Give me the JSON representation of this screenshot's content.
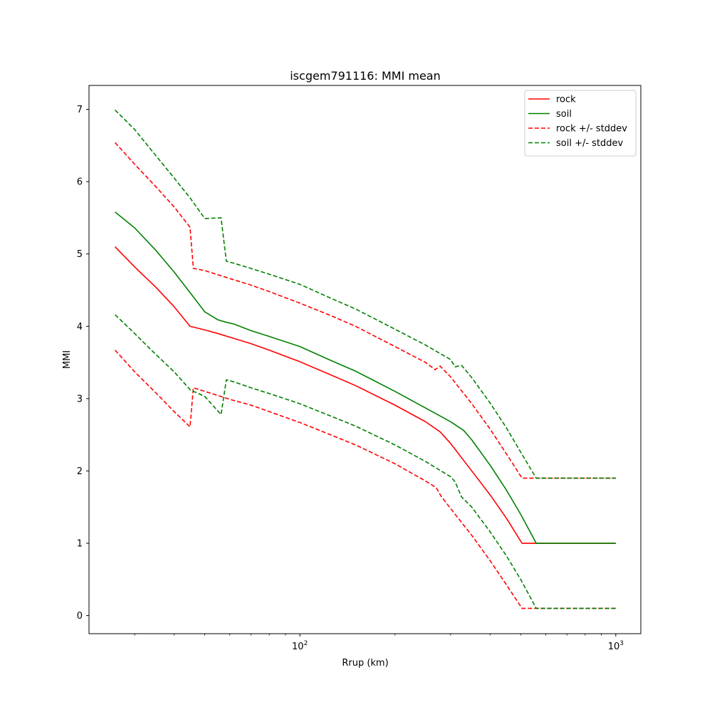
{
  "chart_data": {
    "type": "line",
    "title": "iscgem791116: MMI mean",
    "xlabel": "Rrup (km)",
    "ylabel": "MMI",
    "xscale": "log",
    "xlim": [
      21.5,
      1200
    ],
    "ylim": [
      -0.25,
      7.33
    ],
    "x_major_ticks": [
      {
        "value": 100,
        "base": "10",
        "exp": "2"
      },
      {
        "value": 1000,
        "base": "10",
        "exp": "3"
      }
    ],
    "x_minor_ticks": [
      30,
      40,
      50,
      60,
      70,
      80,
      90,
      200,
      300,
      400,
      500,
      600,
      700,
      800,
      900
    ],
    "y_ticks": [
      0,
      1,
      2,
      3,
      4,
      5,
      6,
      7
    ],
    "grid": false,
    "legend_position": "top-right",
    "series": [
      {
        "name": "rock",
        "color": "#ff0000",
        "style": "solid",
        "x": [
          26,
          30,
          35,
          40,
          44.9,
          50,
          55,
          62,
          70,
          80,
          100,
          125,
          150,
          200,
          250,
          278,
          300,
          350,
          400,
          450,
          505,
          560,
          700,
          1000
        ],
        "y": [
          5.1,
          4.82,
          4.54,
          4.27,
          4.0,
          3.95,
          3.9,
          3.83,
          3.76,
          3.67,
          3.51,
          3.33,
          3.18,
          2.91,
          2.68,
          2.54,
          2.38,
          2.0,
          1.67,
          1.35,
          1.0,
          1.0,
          1.0,
          1.0
        ]
      },
      {
        "name": "soil",
        "color": "#008000",
        "style": "solid",
        "x": [
          26,
          30,
          35,
          40,
          45,
          50,
          55,
          58,
          62,
          70,
          80,
          100,
          125,
          150,
          200,
          250,
          300,
          330,
          350,
          400,
          450,
          500,
          560,
          600,
          700,
          1000
        ],
        "y": [
          5.58,
          5.36,
          5.05,
          4.75,
          4.46,
          4.2,
          4.09,
          4.06,
          4.03,
          3.94,
          3.86,
          3.72,
          3.53,
          3.38,
          3.1,
          2.87,
          2.68,
          2.56,
          2.43,
          2.08,
          1.74,
          1.4,
          1.0,
          1.0,
          1.0,
          1.0
        ]
      },
      {
        "name": "rock +/- stddev",
        "color": "#ff0000",
        "style": "dashed",
        "x": [
          26,
          30,
          35,
          40,
          44.9,
          46,
          50,
          60,
          70,
          80,
          100,
          125,
          150,
          200,
          250,
          268,
          278,
          300,
          350,
          400,
          450,
          505,
          560,
          700,
          1000
        ],
        "y": [
          6.54,
          6.24,
          5.93,
          5.65,
          5.37,
          4.8,
          4.77,
          4.66,
          4.57,
          4.48,
          4.32,
          4.15,
          4.0,
          3.72,
          3.5,
          3.4,
          3.45,
          3.3,
          2.93,
          2.58,
          2.24,
          1.9,
          1.9,
          1.9,
          1.9
        ]
      },
      {
        "name": "",
        "color": "#ff0000",
        "style": "dashed",
        "x": [
          26,
          30,
          35,
          40,
          44.9,
          46,
          50,
          60,
          70,
          80,
          100,
          125,
          150,
          200,
          250,
          270,
          280,
          300,
          350,
          400,
          450,
          505,
          560,
          700,
          1000
        ],
        "y": [
          3.67,
          3.37,
          3.08,
          2.82,
          2.61,
          3.15,
          3.1,
          2.99,
          2.91,
          2.82,
          2.67,
          2.5,
          2.36,
          2.1,
          1.86,
          1.77,
          1.65,
          1.48,
          1.11,
          0.76,
          0.43,
          0.1,
          0.1,
          0.1,
          0.1
        ]
      },
      {
        "name": "soil +/- stddev",
        "color": "#008000",
        "style": "dashed",
        "x": [
          26,
          30,
          35,
          40,
          45,
          50,
          56.3,
          58.5,
          62,
          70,
          80,
          100,
          125,
          150,
          200,
          250,
          300,
          310,
          325,
          350,
          400,
          450,
          500,
          560,
          600,
          700,
          1000
        ],
        "y": [
          6.99,
          6.72,
          6.36,
          6.05,
          5.77,
          5.49,
          5.5,
          4.9,
          4.87,
          4.8,
          4.72,
          4.58,
          4.39,
          4.24,
          3.96,
          3.74,
          3.54,
          3.44,
          3.46,
          3.29,
          2.94,
          2.6,
          2.26,
          1.9,
          1.9,
          1.9,
          1.9
        ]
      },
      {
        "name": "",
        "color": "#008000",
        "style": "dashed",
        "x": [
          26,
          30,
          35,
          40,
          45,
          50,
          56.3,
          58.5,
          62,
          70,
          80,
          100,
          125,
          150,
          200,
          250,
          300,
          310,
          325,
          350,
          400,
          450,
          500,
          560,
          600,
          700,
          1000
        ],
        "y": [
          4.16,
          3.9,
          3.61,
          3.37,
          3.12,
          3.03,
          2.78,
          3.26,
          3.23,
          3.15,
          3.07,
          2.93,
          2.76,
          2.62,
          2.36,
          2.13,
          1.92,
          1.85,
          1.64,
          1.5,
          1.16,
          0.83,
          0.5,
          0.1,
          0.1,
          0.1,
          0.1
        ]
      }
    ]
  }
}
